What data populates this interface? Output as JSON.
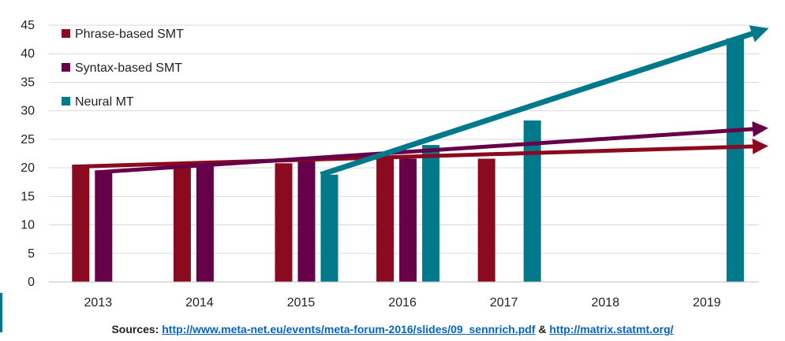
{
  "chart_data": {
    "type": "bar",
    "categories": [
      "2013",
      "2014",
      "2015",
      "2016",
      "2017",
      "2018",
      "2019"
    ],
    "series": [
      {
        "name": "Phrase-based SMT",
        "color": "#8b0a1f",
        "values": [
          20.2,
          20.5,
          20.8,
          22.0,
          21.6,
          null,
          null
        ]
      },
      {
        "name": "Syntax-based SMT",
        "color": "#660049",
        "values": [
          19.2,
          20.5,
          21.8,
          21.6,
          null,
          null,
          null
        ]
      },
      {
        "name": "Neural MT",
        "color": "#007a8a",
        "values": [
          null,
          null,
          18.8,
          24.0,
          28.3,
          null,
          42.7
        ]
      }
    ],
    "trend_arrows": [
      {
        "series": "Phrase-based SMT",
        "from": [
          "2013",
          20.2
        ],
        "to": [
          "2019",
          23.8
        ]
      },
      {
        "series": "Syntax-based SMT",
        "from": [
          "2013",
          19.2
        ],
        "to": [
          "2019",
          26.9
        ]
      },
      {
        "series": "Neural MT",
        "from": [
          "2015",
          18.8
        ],
        "to": [
          "2019",
          42.7
        ]
      }
    ],
    "ylim": [
      0,
      45
    ],
    "yticks": [
      "0",
      "5",
      "10",
      "15",
      "20",
      "25",
      "30",
      "35",
      "40",
      "45"
    ],
    "grid": true,
    "legend_position": "top-left"
  },
  "sources": {
    "label": "Sources:",
    "link1": "http://www.meta-net.eu/events/meta-forum-2016/slides/09_sennrich.pdf",
    "separator": "&",
    "link2": "http://matrix.statmt.org/"
  }
}
